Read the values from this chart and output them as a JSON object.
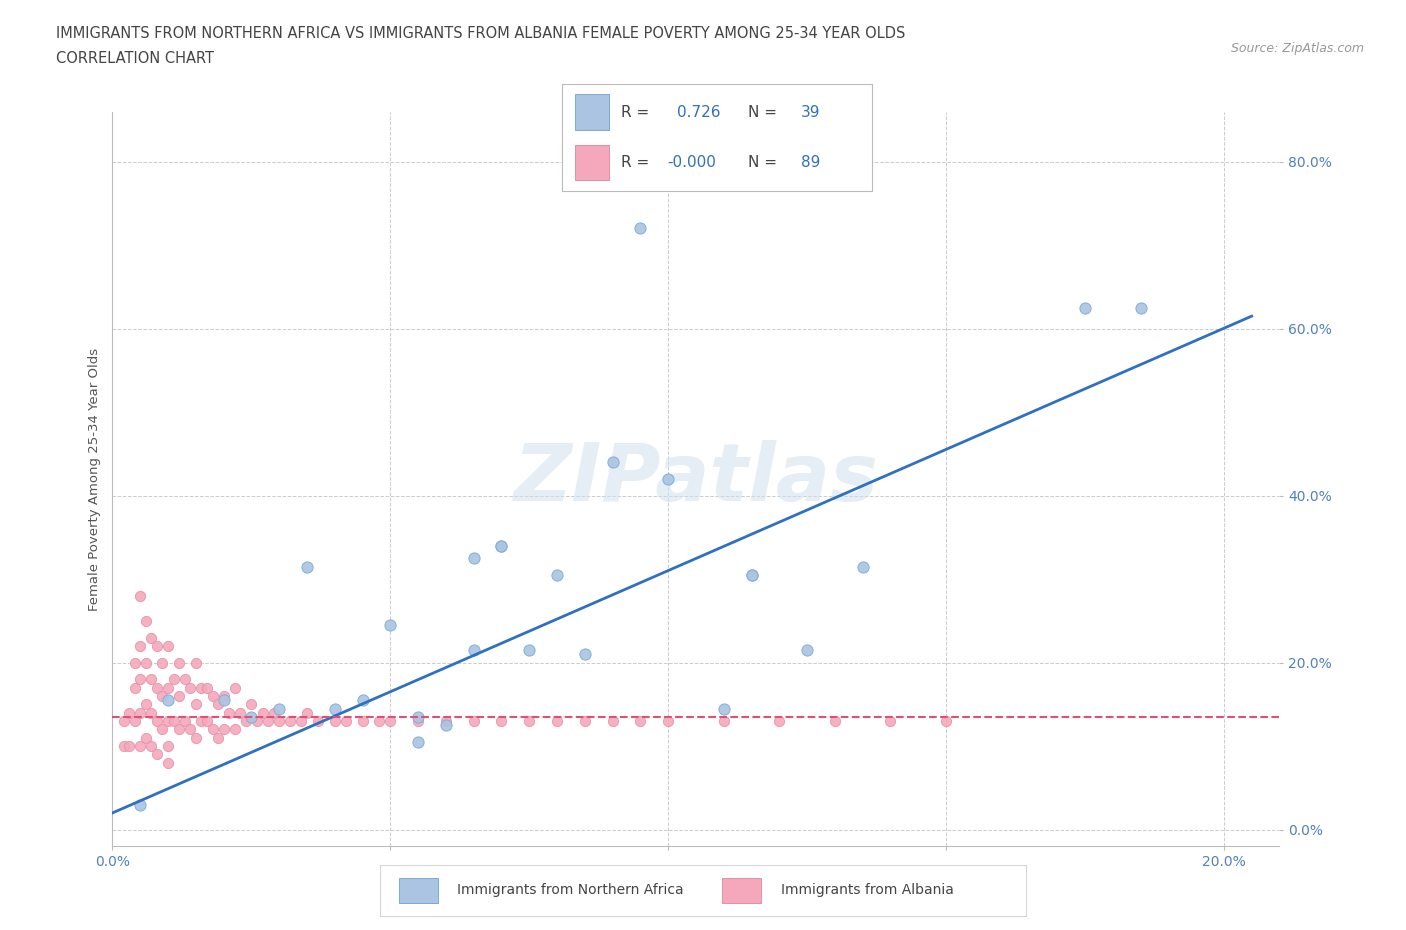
{
  "title_line1": "IMMIGRANTS FROM NORTHERN AFRICA VS IMMIGRANTS FROM ALBANIA FEMALE POVERTY AMONG 25-34 YEAR OLDS",
  "title_line2": "CORRELATION CHART",
  "source_text": "Source: ZipAtlas.com",
  "ylabel": "Female Poverty Among 25-34 Year Olds",
  "xlim": [
    0.0,
    0.21
  ],
  "ylim": [
    -0.02,
    0.86
  ],
  "xticks": [
    0.0,
    0.05,
    0.1,
    0.15,
    0.2
  ],
  "xtick_labels": [
    "0.0%",
    "",
    "",
    "",
    "20.0%"
  ],
  "ytick_values": [
    0.0,
    0.2,
    0.4,
    0.6,
    0.8
  ],
  "ytick_labels": [
    "0.0%",
    "20.0%",
    "40.0%",
    "60.0%",
    "80.0%"
  ],
  "grid_color": "#cccccc",
  "color_blue": "#aac4e2",
  "color_pink": "#f5a8bc",
  "line_blue": "#3070c0",
  "line_pink": "#e05070",
  "blue_scatter_x": [
    0.185,
    0.175,
    0.135,
    0.125,
    0.115,
    0.115,
    0.11,
    0.1,
    0.095,
    0.09,
    0.085,
    0.08,
    0.075,
    0.07,
    0.07,
    0.065,
    0.065,
    0.06,
    0.055,
    0.055,
    0.05,
    0.045,
    0.04,
    0.035,
    0.03,
    0.025,
    0.02,
    0.01,
    0.005
  ],
  "blue_scatter_y": [
    0.625,
    0.625,
    0.315,
    0.215,
    0.305,
    0.305,
    0.145,
    0.42,
    0.72,
    0.44,
    0.21,
    0.305,
    0.215,
    0.34,
    0.34,
    0.325,
    0.215,
    0.125,
    0.135,
    0.105,
    0.245,
    0.155,
    0.145,
    0.315,
    0.145,
    0.135,
    0.155,
    0.155,
    0.03
  ],
  "pink_scatter_x": [
    0.002,
    0.002,
    0.003,
    0.003,
    0.004,
    0.004,
    0.004,
    0.005,
    0.005,
    0.005,
    0.005,
    0.005,
    0.006,
    0.006,
    0.006,
    0.006,
    0.007,
    0.007,
    0.007,
    0.007,
    0.008,
    0.008,
    0.008,
    0.008,
    0.009,
    0.009,
    0.009,
    0.01,
    0.01,
    0.01,
    0.01,
    0.01,
    0.011,
    0.011,
    0.012,
    0.012,
    0.012,
    0.013,
    0.013,
    0.014,
    0.014,
    0.015,
    0.015,
    0.015,
    0.016,
    0.016,
    0.017,
    0.017,
    0.018,
    0.018,
    0.019,
    0.019,
    0.02,
    0.02,
    0.021,
    0.022,
    0.022,
    0.023,
    0.024,
    0.025,
    0.026,
    0.027,
    0.028,
    0.029,
    0.03,
    0.032,
    0.034,
    0.035,
    0.037,
    0.04,
    0.042,
    0.045,
    0.048,
    0.05,
    0.055,
    0.06,
    0.065,
    0.07,
    0.075,
    0.08,
    0.085,
    0.09,
    0.095,
    0.1,
    0.11,
    0.12,
    0.13,
    0.14,
    0.15
  ],
  "pink_scatter_y": [
    0.13,
    0.1,
    0.14,
    0.1,
    0.2,
    0.17,
    0.13,
    0.28,
    0.22,
    0.18,
    0.14,
    0.1,
    0.25,
    0.2,
    0.15,
    0.11,
    0.23,
    0.18,
    0.14,
    0.1,
    0.22,
    0.17,
    0.13,
    0.09,
    0.2,
    0.16,
    0.12,
    0.22,
    0.17,
    0.13,
    0.1,
    0.08,
    0.18,
    0.13,
    0.2,
    0.16,
    0.12,
    0.18,
    0.13,
    0.17,
    0.12,
    0.2,
    0.15,
    0.11,
    0.17,
    0.13,
    0.17,
    0.13,
    0.16,
    0.12,
    0.15,
    0.11,
    0.16,
    0.12,
    0.14,
    0.17,
    0.12,
    0.14,
    0.13,
    0.15,
    0.13,
    0.14,
    0.13,
    0.14,
    0.13,
    0.13,
    0.13,
    0.14,
    0.13,
    0.13,
    0.13,
    0.13,
    0.13,
    0.13,
    0.13,
    0.13,
    0.13,
    0.13,
    0.13,
    0.13,
    0.13,
    0.13,
    0.13,
    0.13,
    0.13,
    0.13,
    0.13,
    0.13,
    0.13
  ],
  "background_color": "#ffffff",
  "blue_line_x0": 0.0,
  "blue_line_y0": 0.02,
  "blue_line_x1": 0.205,
  "blue_line_y1": 0.615,
  "pink_line_x0": 0.0,
  "pink_line_y0": 0.135,
  "pink_line_x1": 0.21,
  "pink_line_y1": 0.135
}
